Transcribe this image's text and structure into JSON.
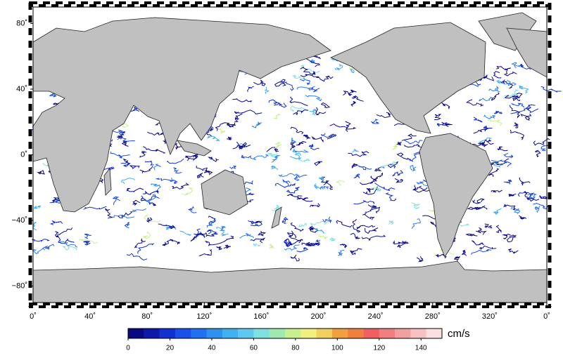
{
  "map": {
    "lat_ticks": [
      {
        "value": 80,
        "label": "80˚"
      },
      {
        "value": 40,
        "label": "40˚"
      },
      {
        "value": 0,
        "label": "0˚"
      },
      {
        "value": -40,
        "label": "−40˚"
      },
      {
        "value": -80,
        "label": "−80˚"
      }
    ],
    "lon_ticks": [
      {
        "value": 0,
        "label": "0˚"
      },
      {
        "value": 40,
        "label": "40˚"
      },
      {
        "value": 80,
        "label": "80˚"
      },
      {
        "value": 120,
        "label": "120˚"
      },
      {
        "value": 160,
        "label": "160˚"
      },
      {
        "value": 200,
        "label": "200˚"
      },
      {
        "value": 240,
        "label": "240˚"
      },
      {
        "value": 280,
        "label": "280˚"
      },
      {
        "value": 320,
        "label": "320˚"
      },
      {
        "value": 360,
        "label": "0˚"
      }
    ],
    "latlim": [
      -90,
      90
    ],
    "lonlim": [
      0,
      360
    ]
  },
  "colorbar": {
    "unit": "cm/s",
    "lim": [
      0,
      150
    ],
    "ticks": [
      0,
      20,
      40,
      60,
      80,
      100,
      120,
      140
    ],
    "colors": [
      "#0a0a80",
      "#0d1aa8",
      "#1030d0",
      "#1850e8",
      "#2070f0",
      "#3090f0",
      "#40b0f0",
      "#60c8f0",
      "#80e0e0",
      "#a0e8b0",
      "#c8f090",
      "#f0f080",
      "#f0d060",
      "#f0a040",
      "#f08040",
      "#f06060",
      "#f08080",
      "#f0a0a0",
      "#f8c0c0",
      "#fce0e0"
    ]
  }
}
